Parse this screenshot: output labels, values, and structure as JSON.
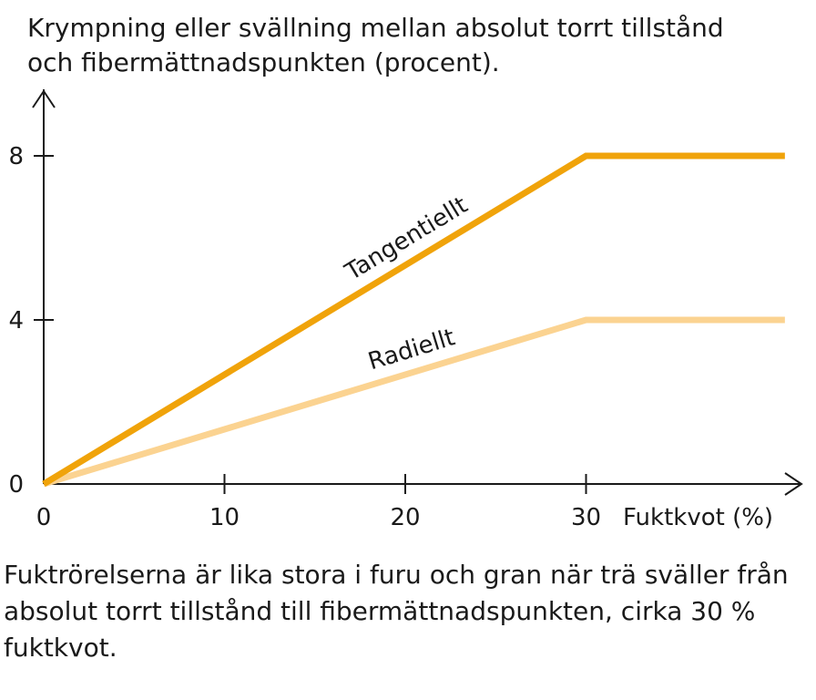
{
  "chart_data": {
    "type": "line",
    "title_lines": [
      "Krympning eller svällning mellan absolut torrt tillstånd",
      "och fibermättnadspunkten (procent)."
    ],
    "xlabel": "Fuktkvot (%)",
    "ylabel": "",
    "x_ticks": [
      0,
      10,
      20,
      30
    ],
    "y_ticks": [
      0,
      4,
      8
    ],
    "xlim": [
      0,
      41
    ],
    "ylim": [
      0,
      9.6
    ],
    "grid": false,
    "series": [
      {
        "name": "Tangentiellt",
        "color": "#f0a30a",
        "x": [
          0,
          30,
          41
        ],
        "y": [
          0,
          8,
          8
        ]
      },
      {
        "name": "Radiellt",
        "color": "#fbd391",
        "x": [
          0,
          30,
          41
        ],
        "y": [
          0,
          4,
          4
        ]
      }
    ]
  },
  "caption_lines": [
    "Fuktrörelserna är lika stora i furu och gran när trä sväller från",
    "absolut torrt tillstånd till fibermättnadspunkten, cirka 30 %",
    "fuktkvot."
  ]
}
